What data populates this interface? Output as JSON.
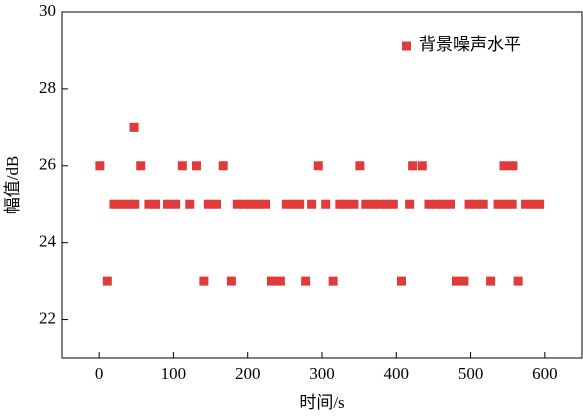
{
  "chart_data": {
    "type": "scatter",
    "x_label": "时间/s",
    "y_label": "幅值/dB",
    "xlim": [
      -50,
      650
    ],
    "xticks": [
      0,
      100,
      200,
      300,
      400,
      500,
      600
    ],
    "ylim": [
      21,
      30
    ],
    "yticks": [
      22,
      24,
      26,
      28,
      30
    ],
    "legend": "upper right",
    "series": [
      {
        "name": "背景噪声水平",
        "color": "#e03a3a",
        "x": [
          1,
          11,
          20,
          29,
          39,
          47,
          48,
          56,
          67,
          76,
          92,
          103,
          112,
          122,
          131,
          141,
          147,
          158,
          167,
          178,
          186,
          195,
          205,
          214,
          224,
          232,
          244,
          252,
          261,
          270,
          278,
          286,
          295,
          305,
          315,
          324,
          333,
          343,
          351,
          359,
          368,
          378,
          387,
          396,
          407,
          418,
          422,
          435,
          444,
          454,
          463,
          473,
          481,
          491,
          498,
          507,
          517,
          527,
          537,
          545,
          547,
          556,
          557,
          564,
          574,
          584,
          593
        ],
        "values": [
          26,
          23,
          25,
          25,
          25,
          27,
          25,
          26,
          25,
          25,
          25,
          25,
          26,
          25,
          26,
          23,
          25,
          25,
          26,
          23,
          25,
          25,
          25,
          25,
          25,
          23,
          23,
          25,
          25,
          25,
          23,
          25,
          26,
          25,
          23,
          25,
          25,
          25,
          26,
          25,
          25,
          25,
          25,
          25,
          23,
          25,
          26,
          26,
          25,
          25,
          25,
          25,
          23,
          23,
          25,
          25,
          25,
          23,
          25,
          26,
          25,
          25,
          26,
          23,
          25,
          25,
          25
        ]
      }
    ]
  }
}
